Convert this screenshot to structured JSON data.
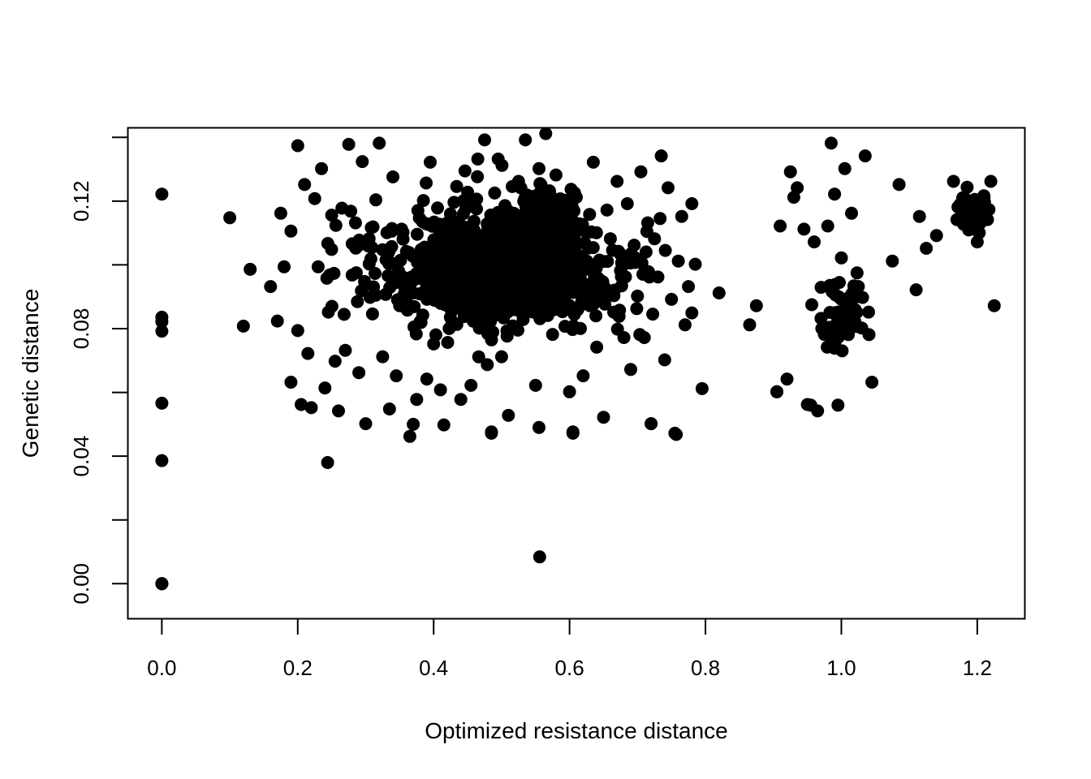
{
  "chart_data": {
    "type": "scatter",
    "title": "",
    "xlabel": "Optimized resistance distance",
    "ylabel": "Genetic distance",
    "xlim": [
      -0.05,
      1.27
    ],
    "ylim": [
      -0.011,
      0.143
    ],
    "x_ticks": [
      0.0,
      0.2,
      0.4,
      0.6,
      0.8,
      1.0,
      1.2
    ],
    "x_tick_labels": [
      "0.0",
      "0.2",
      "0.4",
      "0.6",
      "0.8",
      "1.0",
      "1.2"
    ],
    "y_ticks": [
      0.0,
      0.02,
      0.04,
      0.06,
      0.08,
      0.1,
      0.12,
      0.14
    ],
    "y_tick_labels": [
      "0.00",
      "",
      "0.04",
      "",
      "0.08",
      "",
      "0.12",
      ""
    ],
    "grid": false,
    "legend": "none",
    "point_color": "#000000",
    "x": [
      0.0,
      0.0,
      0.0,
      0.0,
      0.0,
      0.0,
      0.0,
      0.0,
      0.0,
      0.1,
      0.12,
      0.13,
      0.16,
      0.17,
      0.175,
      0.18,
      0.19,
      0.19,
      0.2,
      0.2,
      0.205,
      0.21,
      0.215,
      0.22,
      0.225,
      0.23,
      0.235,
      0.24,
      0.245,
      0.25,
      0.255,
      0.26,
      0.265,
      0.27,
      0.275,
      0.28,
      0.285,
      0.29,
      0.295,
      0.3,
      0.305,
      0.31,
      0.315,
      0.32,
      0.325,
      0.33,
      0.335,
      0.34,
      0.345,
      0.35,
      0.355,
      0.36,
      0.365,
      0.37,
      0.375,
      0.38,
      0.385,
      0.39,
      0.395,
      0.4,
      0.405,
      0.41,
      0.415,
      0.42,
      0.425,
      0.43,
      0.435,
      0.44,
      0.445,
      0.45,
      0.455,
      0.46,
      0.465,
      0.47,
      0.475,
      0.48,
      0.485,
      0.49,
      0.495,
      0.5,
      0.505,
      0.51,
      0.515,
      0.52,
      0.525,
      0.53,
      0.535,
      0.54,
      0.545,
      0.55,
      0.555,
      0.56,
      0.565,
      0.57,
      0.575,
      0.58,
      0.585,
      0.59,
      0.595,
      0.6,
      0.605,
      0.61,
      0.615,
      0.62,
      0.625,
      0.63,
      0.635,
      0.64,
      0.645,
      0.65,
      0.655,
      0.66,
      0.665,
      0.67,
      0.675,
      0.68,
      0.685,
      0.69,
      0.695,
      0.7,
      0.705,
      0.71,
      0.715,
      0.72,
      0.725,
      0.73,
      0.735,
      0.74,
      0.745,
      0.75,
      0.755,
      0.76,
      0.765,
      0.77,
      0.775,
      0.78,
      0.785,
      0.795,
      0.82,
      0.865,
      0.875,
      0.905,
      0.91,
      0.92,
      0.925,
      0.93,
      0.935,
      0.945,
      0.95,
      0.96,
      0.965,
      0.97,
      0.975,
      0.98,
      0.985,
      0.99,
      0.995,
      1.0,
      1.005,
      1.01,
      1.015,
      1.02,
      1.025,
      1.03,
      1.035,
      1.04,
      1.045,
      1.075,
      1.085,
      1.11,
      1.115,
      1.125,
      1.14,
      1.165,
      1.17,
      1.18,
      1.19,
      1.2,
      1.21,
      1.215,
      1.22,
      1.225,
      0.556,
      0.244,
      0.37,
      0.485,
      0.555,
      0.605,
      0.72,
      0.757,
      0.905,
      0.955,
      0.995
    ],
    "y": [
      0.0,
      0.0,
      0.0386,
      0.0566,
      0.0792,
      0.0822,
      0.0836,
      0.1222,
      0.0,
      0.1148,
      0.0808,
      0.0986,
      0.0932,
      0.0824,
      0.1162,
      0.0994,
      0.0632,
      0.1106,
      0.1374,
      0.0794,
      0.0562,
      0.1252,
      0.0722,
      0.0552,
      0.1208,
      0.0994,
      0.1302,
      0.0614,
      0.0852,
      0.1156,
      0.0698,
      0.0542,
      0.1178,
      0.0732,
      0.1378,
      0.0968,
      0.1132,
      0.0662,
      0.1324,
      0.0502,
      0.1082,
      0.0846,
      0.1204,
      0.1382,
      0.0712,
      0.1016,
      0.0548,
      0.1276,
      0.0652,
      0.0872,
      0.1102,
      0.0938,
      0.0462,
      0.0912,
      0.0578,
      0.0822,
      0.1202,
      0.0642,
      0.1322,
      0.0752,
      0.1052,
      0.0608,
      0.0498,
      0.1132,
      0.0862,
      0.1196,
      0.0948,
      0.0578,
      0.0838,
      0.1228,
      0.0622,
      0.1032,
      0.1332,
      0.0812,
      0.1392,
      0.1124,
      0.0472,
      0.0992,
      0.1332,
      0.0712,
      0.1186,
      0.0528,
      0.1082,
      0.0936,
      0.1262,
      0.0862,
      0.1392,
      0.0982,
      0.1162,
      0.0622,
      0.1302,
      0.0902,
      0.1412,
      0.1072,
      0.0782,
      0.1282,
      0.0942,
      0.0862,
      0.1152,
      0.0602,
      0.0472,
      0.1212,
      0.0982,
      0.0652,
      0.1102,
      0.0872,
      0.1322,
      0.0742,
      0.0952,
      0.0522,
      0.1172,
      0.1082,
      0.0852,
      0.1262,
      0.0982,
      0.0772,
      0.1192,
      0.0672,
      0.1062,
      0.0902,
      0.1292,
      0.0772,
      0.1132,
      0.0502,
      0.1082,
      0.0962,
      0.1342,
      0.0702,
      0.1242,
      0.0892,
      0.0472,
      0.1012,
      0.1152,
      0.0812,
      0.0932,
      0.1192,
      0.1002,
      0.0612,
      0.0912,
      0.0812,
      0.0872,
      0.0602,
      0.1122,
      0.0642,
      0.1292,
      0.1212,
      0.1242,
      0.1112,
      0.0562,
      0.1072,
      0.0542,
      0.0832,
      0.0782,
      0.1122,
      0.1382,
      0.1222,
      0.0852,
      0.1022,
      0.1302,
      0.0872,
      0.1162,
      0.0822,
      0.0932,
      0.0802,
      0.1342,
      0.0852,
      0.0632,
      0.1012,
      0.1252,
      0.0922,
      0.1152,
      0.1052,
      0.1092,
      0.1262,
      0.1142,
      0.1172,
      0.1122,
      0.1072,
      0.1212,
      0.1142,
      0.1262,
      0.0872,
      0.0084,
      0.038,
      0.05,
      0.0476,
      0.049,
      0.0476,
      0.0502,
      0.0468,
      0.0602,
      0.056,
      0.056
    ],
    "cloud_generator": "cluster_seeded"
  }
}
